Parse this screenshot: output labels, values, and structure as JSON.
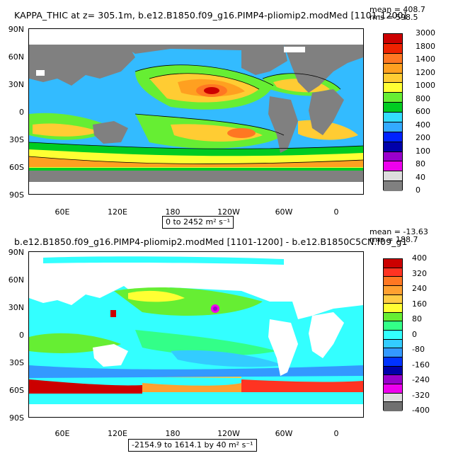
{
  "panel1": {
    "title": "KAPPA_THIC at z= 305.1m, b.e12.B1850.f09_g16.PIMP4-pliomip2.modMed [1101-1200]",
    "stat_mean": "mean = 408.7",
    "stat_rms": "rms = 598.5",
    "range": "0 to 2452 m² s⁻¹",
    "colorbar_labels": [
      "3000",
      "1800",
      "1400",
      "1200",
      "1000",
      "800",
      "600",
      "400",
      "200",
      "100",
      "80",
      "40",
      "0"
    ],
    "colorbar_colors": [
      "#cc0000",
      "#ee2200",
      "#ff7722",
      "#ffa020",
      "#ffcc33",
      "#ffff33",
      "#66ee33",
      "#00cc22",
      "#33ddff",
      "#33aaff",
      "#0022ff",
      "#0000aa",
      "#9900cc",
      "#ee00ee",
      "#dddddd",
      "#808080"
    ]
  },
  "panel2": {
    "title": "b.e12.B1850.f09_g16.PIMP4-pliomip2.modMed [1101-1200] - b.e12.B1850C5CN.f09_g1",
    "stat_mean": "mean = -13.63",
    "stat_rms": "rms = 188.7",
    "range": "-2154.9 to 1614.1 by 40 m² s⁻¹",
    "colorbar_labels": [
      "400",
      "320",
      "240",
      "160",
      "80",
      "0",
      "-80",
      "-160",
      "-240",
      "-320",
      "-400"
    ],
    "colorbar_colors": [
      "#cc0000",
      "#ff3322",
      "#ff7722",
      "#ffa030",
      "#ffcc44",
      "#ffff33",
      "#66ee33",
      "#33ff88",
      "#33ffff",
      "#33ccff",
      "#3399ff",
      "#0033ff",
      "#0000aa",
      "#9900cc",
      "#ee00ee",
      "#dddddd",
      "#707070"
    ]
  },
  "lat_ticks": [
    "90N",
    "60N",
    "30N",
    "0",
    "30S",
    "60S",
    "90S"
  ],
  "lon_ticks": [
    "60E",
    "120E",
    "180",
    "120W",
    "60W",
    "0"
  ]
}
